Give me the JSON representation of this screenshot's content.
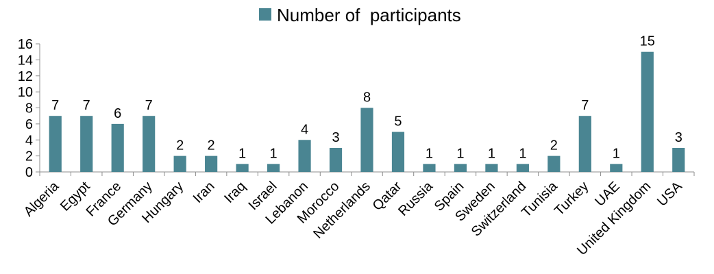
{
  "chart_data": {
    "type": "bar",
    "title": "",
    "xlabel": "",
    "ylabel": "",
    "ylim": [
      0,
      16
    ],
    "yticks": [
      0,
      2,
      4,
      6,
      8,
      10,
      12,
      14,
      16
    ],
    "grid": false,
    "legend_position": "top-center",
    "categories": [
      "Algeria",
      "Egypt",
      "France",
      "Germany",
      "Hungary",
      "Iran",
      "Iraq",
      "Israel",
      "Lebanon",
      "Morocco",
      "Netherlands",
      "Qatar",
      "Russia",
      "Spain",
      "Sweden",
      "Switzerland",
      "Tunisia",
      "Turkey",
      "UAE",
      "United Kingdom",
      "USA"
    ],
    "series": [
      {
        "name": "Number of  participants",
        "color": "#4A8592",
        "values": [
          7,
          7,
          6,
          7,
          2,
          2,
          1,
          1,
          4,
          3,
          8,
          5,
          1,
          1,
          1,
          1,
          2,
          7,
          1,
          15,
          3
        ]
      }
    ]
  }
}
